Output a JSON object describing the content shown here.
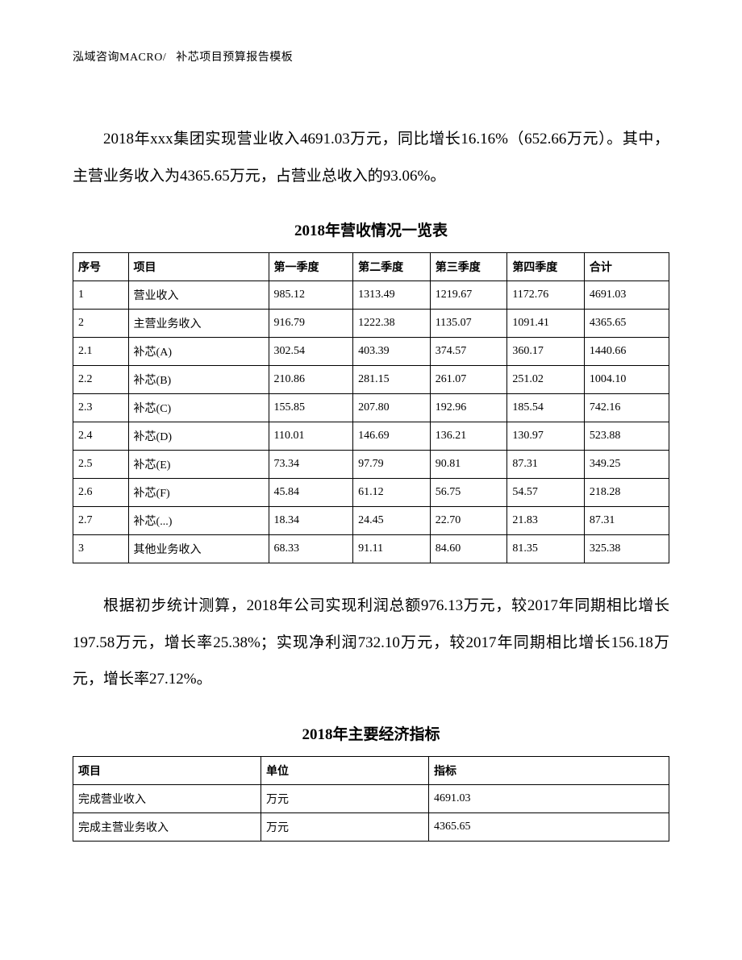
{
  "header": {
    "company": "泓域咨询MACRO/",
    "doc_title": "补芯项目预算报告模板"
  },
  "paragraph1": "2018年xxx集团实现营业收入4691.03万元，同比增长16.16%（652.66万元）。其中，主营业务收入为4365.65万元，占营业总收入的93.06%。",
  "table1": {
    "title": "2018年营收情况一览表",
    "columns": [
      "序号",
      "项目",
      "第一季度",
      "第二季度",
      "第三季度",
      "第四季度",
      "合计"
    ],
    "col_classes": [
      "col-seq",
      "col-item",
      "col-q1",
      "col-q2",
      "col-q3",
      "col-q4",
      "col-total"
    ],
    "rows": [
      [
        "1",
        "营业收入",
        "985.12",
        "1313.49",
        "1219.67",
        "1172.76",
        "4691.03"
      ],
      [
        "2",
        "主营业务收入",
        "916.79",
        "1222.38",
        "1135.07",
        "1091.41",
        "4365.65"
      ],
      [
        "2.1",
        "补芯(A)",
        "302.54",
        "403.39",
        "374.57",
        "360.17",
        "1440.66"
      ],
      [
        "2.2",
        "补芯(B)",
        "210.86",
        "281.15",
        "261.07",
        "251.02",
        "1004.10"
      ],
      [
        "2.3",
        "补芯(C)",
        "155.85",
        "207.80",
        "192.96",
        "185.54",
        "742.16"
      ],
      [
        "2.4",
        "补芯(D)",
        "110.01",
        "146.69",
        "136.21",
        "130.97",
        "523.88"
      ],
      [
        "2.5",
        "补芯(E)",
        "73.34",
        "97.79",
        "90.81",
        "87.31",
        "349.25"
      ],
      [
        "2.6",
        "补芯(F)",
        "45.84",
        "61.12",
        "56.75",
        "54.57",
        "218.28"
      ],
      [
        "2.7",
        "补芯(...)",
        "18.34",
        "24.45",
        "22.70",
        "21.83",
        "87.31"
      ],
      [
        "3",
        "其他业务收入",
        "68.33",
        "91.11",
        "84.60",
        "81.35",
        "325.38"
      ]
    ]
  },
  "paragraph2": "根据初步统计测算，2018年公司实现利润总额976.13万元，较2017年同期相比增长197.58万元，增长率25.38%；实现净利润732.10万元，较2017年同期相比增长156.18万元，增长率27.12%。",
  "table2": {
    "title": "2018年主要经济指标",
    "columns": [
      "项目",
      "单位",
      "指标"
    ],
    "col_classes": [
      "col-xm",
      "col-dw",
      "col-zb"
    ],
    "rows": [
      [
        "完成营业收入",
        "万元",
        "4691.03"
      ],
      [
        "完成主营业务收入",
        "万元",
        "4365.65"
      ]
    ]
  }
}
